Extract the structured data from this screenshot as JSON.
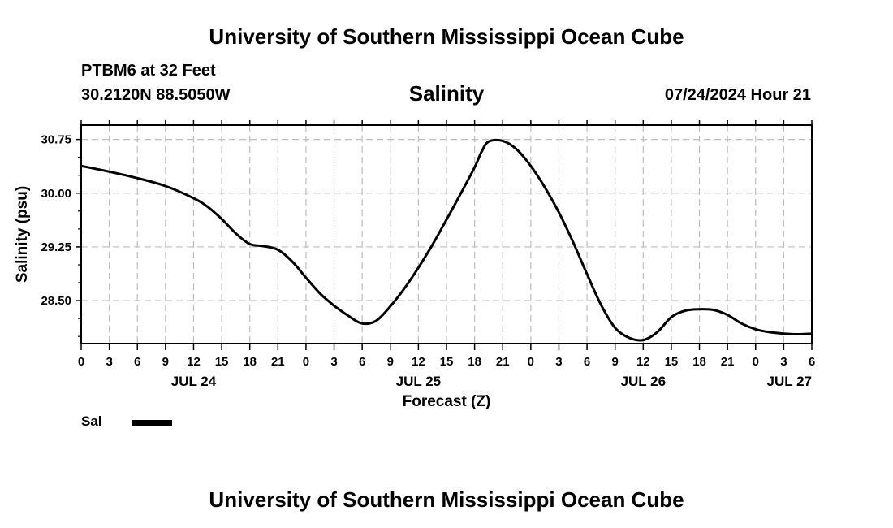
{
  "header": {
    "title": "University of Southern Mississippi Ocean Cube",
    "station": "PTBM6 at 32 Feet",
    "coordinates": "30.2120N  88.5050W",
    "variable_title": "Salinity",
    "timestamp": "07/24/2024 Hour 21"
  },
  "footer": {
    "title": "University of Southern Mississippi Ocean Cube"
  },
  "legend": {
    "label": "Sal"
  },
  "chart_data": {
    "type": "line",
    "title": "Salinity",
    "xlabel": "Forecast (Z)",
    "ylabel": "Salinity (psu)",
    "x_unit": "hours from 00Z JUL 24",
    "xlim": [
      0,
      78
    ],
    "ylim": [
      27.9,
      30.95
    ],
    "y_ticks": [
      28.5,
      29.25,
      30.0,
      30.75
    ],
    "y_tick_labels": [
      "28.50",
      "29.25",
      "30.00",
      "30.75"
    ],
    "x_ticks": [
      0,
      3,
      6,
      9,
      12,
      15,
      18,
      21,
      24,
      27,
      30,
      33,
      36,
      39,
      42,
      45,
      48,
      51,
      54,
      57,
      60,
      63,
      66,
      69,
      72,
      75,
      78
    ],
    "x_tick_labels": [
      "0",
      "3",
      "6",
      "9",
      "12",
      "15",
      "18",
      "21",
      "0",
      "3",
      "6",
      "9",
      "12",
      "15",
      "18",
      "21",
      "0",
      "3",
      "6",
      "9",
      "12",
      "15",
      "18",
      "21",
      "0",
      "3",
      "6"
    ],
    "date_labels": [
      {
        "label": "JUL 24",
        "x": 12
      },
      {
        "label": "JUL 25",
        "x": 36
      },
      {
        "label": "JUL 26",
        "x": 60
      },
      {
        "label": "JUL 27",
        "x": 78
      }
    ],
    "grid": true,
    "series": [
      {
        "name": "Sal",
        "x": [
          0,
          3,
          6,
          9,
          12,
          13.5,
          15,
          16.5,
          18,
          19.5,
          21,
          22.5,
          24,
          25.5,
          27,
          28.5,
          30,
          31.5,
          33,
          34.5,
          36,
          37.5,
          39,
          40.5,
          42,
          42.75,
          43.5,
          45,
          46.5,
          48,
          49.5,
          51,
          52.5,
          54,
          55.5,
          57,
          58.5,
          60,
          61.5,
          63,
          64.5,
          66,
          67.5,
          69,
          70.5,
          72,
          73.5,
          75,
          76.5,
          78
        ],
        "y": [
          30.38,
          30.3,
          30.21,
          30.1,
          29.93,
          29.81,
          29.64,
          29.44,
          29.29,
          29.26,
          29.21,
          29.05,
          28.82,
          28.6,
          28.43,
          28.29,
          28.18,
          28.22,
          28.42,
          28.67,
          28.96,
          29.28,
          29.63,
          29.99,
          30.36,
          30.58,
          30.72,
          30.73,
          30.61,
          30.38,
          30.08,
          29.73,
          29.32,
          28.87,
          28.44,
          28.12,
          27.98,
          27.95,
          28.06,
          28.27,
          28.36,
          28.38,
          28.37,
          28.3,
          28.18,
          28.1,
          28.06,
          28.04,
          28.03,
          28.04
        ]
      }
    ]
  }
}
